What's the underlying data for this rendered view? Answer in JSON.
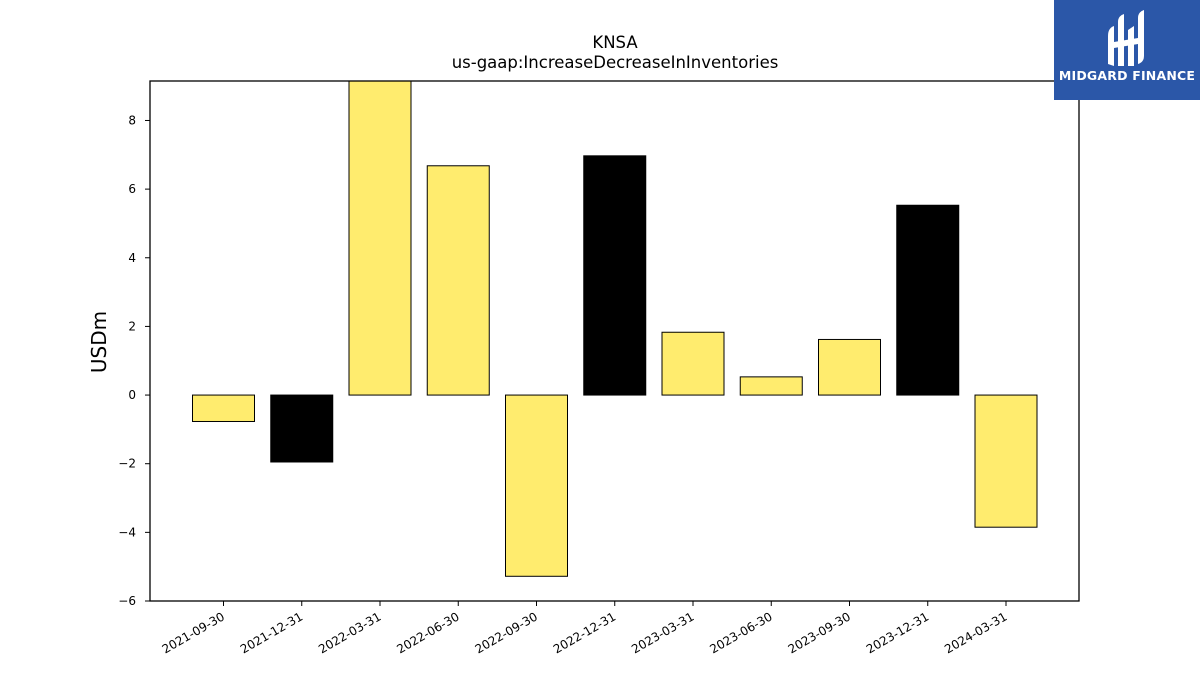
{
  "chart_data": {
    "type": "bar",
    "title": "KNSA",
    "subtitle": "us-gaap:IncreaseDecreaseInInventories",
    "xlabel": "",
    "ylabel": "USDm",
    "categories": [
      "2021-09-30",
      "2021-12-31",
      "2022-03-31",
      "2022-06-30",
      "2022-09-30",
      "2022-12-31",
      "2023-03-31",
      "2023-06-30",
      "2023-09-30",
      "2023-12-31",
      "2024-03-31"
    ],
    "values": [
      -0.77,
      -1.95,
      9.2,
      6.68,
      -5.28,
      6.97,
      1.83,
      0.53,
      1.62,
      5.53,
      -3.85
    ],
    "bar_colors": [
      "#ffec6e",
      "#000000",
      "#ffec6e",
      "#ffec6e",
      "#ffec6e",
      "#000000",
      "#ffec6e",
      "#ffec6e",
      "#ffec6e",
      "#000000",
      "#ffec6e"
    ],
    "ylim": [
      -6,
      9.15
    ],
    "yticks": [
      -6,
      -4,
      -2,
      0,
      2,
      4,
      6,
      8
    ],
    "ytick_labels": [
      "−6",
      "−4",
      "−2",
      "0",
      "2",
      "4",
      "6",
      "8"
    ],
    "grid": false,
    "legend": "none"
  },
  "branding": {
    "logo_text": "MIDGARD FINANCE",
    "logo_color": "#2b57a8"
  }
}
